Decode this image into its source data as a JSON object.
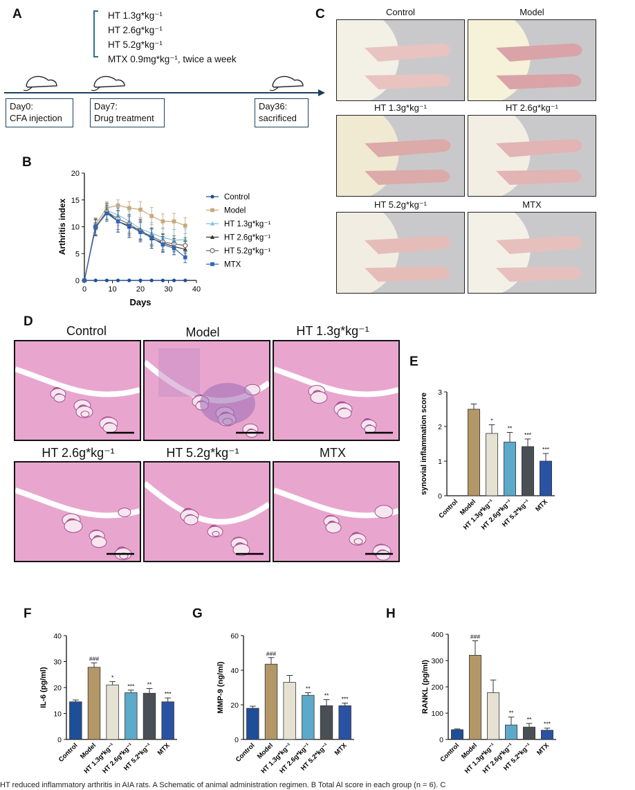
{
  "panelA": {
    "letter": "A",
    "doses": [
      "HT 1.3g*kg⁻¹",
      "HT 2.6g*kg⁻¹",
      "HT 5.2g*kg⁻¹",
      "MTX 0.9mg*kg⁻¹,   twice a week"
    ],
    "events": [
      {
        "day": "Day0:",
        "desc": "CFA injection"
      },
      {
        "day": "Day7:",
        "desc": "Drug treatment"
      },
      {
        "day": "Day36:",
        "desc": "sacrificed"
      }
    ]
  },
  "panelC": {
    "letter": "C",
    "titles": [
      "Control",
      "Model",
      "HT 1.3g*kg⁻¹",
      "HT 2.6g*kg⁻¹",
      "HT 5.2g*kg⁻¹",
      "MTX"
    ]
  },
  "panelD": {
    "letter": "D",
    "titles": [
      "Control",
      "Model",
      "HT 1.3g*kg⁻¹",
      "HT 2.6g*kg⁻¹",
      "HT 5.2g*kg⁻¹",
      "MTX"
    ]
  },
  "colors": {
    "control": "#1f4e99",
    "model": "#b39767",
    "ht13": "#e6e2d3",
    "ht26": "#5da9c9",
    "ht52": "#4a4f55",
    "mtx": "#2a52a3",
    "lineControl": "#1f4e99",
    "lineModel": "#c7a879",
    "lineHT13": "#7fbfe0",
    "lineHT26": "#333333",
    "lineHT52": "#6b6b5a",
    "lineMTX": "#2f64b5"
  },
  "chart_data": [
    {
      "letter": "B",
      "type": "line",
      "xlabel": "Days",
      "ylabel": "Arthritis index",
      "xlim": [
        0,
        40
      ],
      "ylim": [
        0,
        20
      ],
      "xticks": [
        "0",
        "10",
        "20",
        "30",
        "40"
      ],
      "yticks": [
        "0",
        "5",
        "10",
        "15",
        "20"
      ],
      "legend_position": "right",
      "x": [
        0,
        4,
        8,
        12,
        16,
        20,
        24,
        28,
        32,
        36
      ],
      "series": [
        {
          "name": "Control",
          "values": [
            0,
            0,
            0,
            0,
            0,
            0,
            0,
            0,
            0,
            0
          ],
          "err": [
            0,
            0,
            0,
            0,
            0,
            0,
            0,
            0,
            0,
            0
          ]
        },
        {
          "name": "Model",
          "values": [
            0,
            10.5,
            13.5,
            14,
            13.5,
            13.2,
            12,
            11,
            11,
            10.2
          ],
          "err": [
            0,
            1.2,
            1.2,
            1.0,
            1.2,
            1.5,
            1.6,
            1.4,
            1.5,
            1.5
          ]
        },
        {
          "name": "HT 1.3g*kg⁻¹",
          "values": [
            0,
            10,
            13,
            12.2,
            11,
            9.6,
            8.8,
            8,
            7.5,
            7.6
          ],
          "err": [
            0,
            1.5,
            1.5,
            2,
            2,
            2,
            2,
            1.8,
            2,
            2
          ]
        },
        {
          "name": "HT 2.6g*kg⁻¹",
          "values": [
            0,
            9.8,
            12.8,
            11,
            10,
            9.5,
            7.8,
            7,
            6.3,
            5.8
          ],
          "err": [
            0,
            1.5,
            1.5,
            2,
            2,
            1.8,
            1.8,
            1.6,
            1.5,
            1.5
          ]
        },
        {
          "name": "HT 5.2g*kg⁻¹",
          "values": [
            0,
            10,
            12.8,
            11.5,
            10.5,
            9.2,
            8.2,
            7.2,
            6.8,
            6.5
          ],
          "err": [
            0,
            1.5,
            1.5,
            2,
            1.8,
            1.8,
            1.6,
            1.5,
            1.5,
            1.5
          ]
        },
        {
          "name": "MTX",
          "values": [
            0,
            10,
            12.5,
            11,
            10.2,
            9,
            8,
            6.7,
            6,
            4.3
          ],
          "err": [
            0,
            1.5,
            1.5,
            2,
            1.8,
            1.8,
            1.6,
            1.5,
            1.2,
            1.0
          ]
        }
      ]
    },
    {
      "letter": "E",
      "type": "bar",
      "ylabel": "synovial inflammation score",
      "ylim": [
        0,
        3
      ],
      "yticks": [
        "0",
        "1",
        "2",
        "3"
      ],
      "categories": [
        "Control",
        "Model",
        "HT 1.3g*kg⁻¹",
        "HT 2.6g*kg⁻¹",
        "HT 5.2*kg⁻¹",
        "MTX"
      ],
      "values": [
        0,
        2.5,
        1.8,
        1.55,
        1.42,
        1.0
      ],
      "err": [
        0,
        0.15,
        0.25,
        0.28,
        0.22,
        0.22
      ],
      "sig": [
        "",
        "",
        "*",
        "**",
        "***",
        "***"
      ]
    },
    {
      "letter": "F",
      "type": "bar",
      "ylabel": "IL-6 (pg/ml)",
      "ylim": [
        0,
        40
      ],
      "yticks": [
        "0",
        "10",
        "20",
        "30",
        "40"
      ],
      "categories": [
        "Control",
        "Model",
        "HT 1.3g*kg⁻¹",
        "HT 2.6g*kg⁻¹",
        "HT 5.2*kg⁻¹",
        "MTX"
      ],
      "values": [
        14.5,
        27.8,
        21,
        18,
        17.8,
        14.5
      ],
      "err": [
        0.7,
        1.7,
        1.3,
        1.0,
        1.8,
        1.5
      ],
      "sig": [
        "",
        "###",
        "*",
        "***",
        "**",
        "***"
      ]
    },
    {
      "letter": "G",
      "type": "bar",
      "ylabel": "MMP-9 (ng/ml)",
      "ylim": [
        0,
        60
      ],
      "yticks": [
        "0",
        "20",
        "40",
        "60"
      ],
      "categories": [
        "Control",
        "Model",
        "HT 1.3g*kg⁻¹",
        "HT 2.6g*kg⁻¹",
        "HT 5.2*kg⁻¹",
        "MTX"
      ],
      "values": [
        18,
        43.5,
        33,
        25.5,
        19.5,
        19.5
      ],
      "err": [
        1.2,
        3.8,
        4.0,
        1.5,
        3.5,
        1.5
      ],
      "sig": [
        "",
        "###",
        "",
        "**",
        "**",
        "***"
      ]
    },
    {
      "letter": "H",
      "type": "bar",
      "ylabel": "RANKL (pg/ml)",
      "ylim": [
        0,
        400
      ],
      "yticks": [
        "0",
        "100",
        "200",
        "300",
        "400"
      ],
      "categories": [
        "Control",
        "Model",
        "HT 1.3g*kg⁻¹",
        "HT 2.6g*kg⁻¹",
        "HT 5.2*kg⁻¹",
        "MTX"
      ],
      "values": [
        37,
        320,
        178,
        55,
        47,
        35
      ],
      "err": [
        3,
        55,
        48,
        30,
        14,
        8
      ],
      "sig": [
        "",
        "###",
        "",
        "**",
        "**",
        "***"
      ]
    }
  ],
  "caption": "HT reduced inflammatory arthritis in AIA rats. A Schematic of animal administration regimen. B Total Al score in each group (n = 6). C"
}
